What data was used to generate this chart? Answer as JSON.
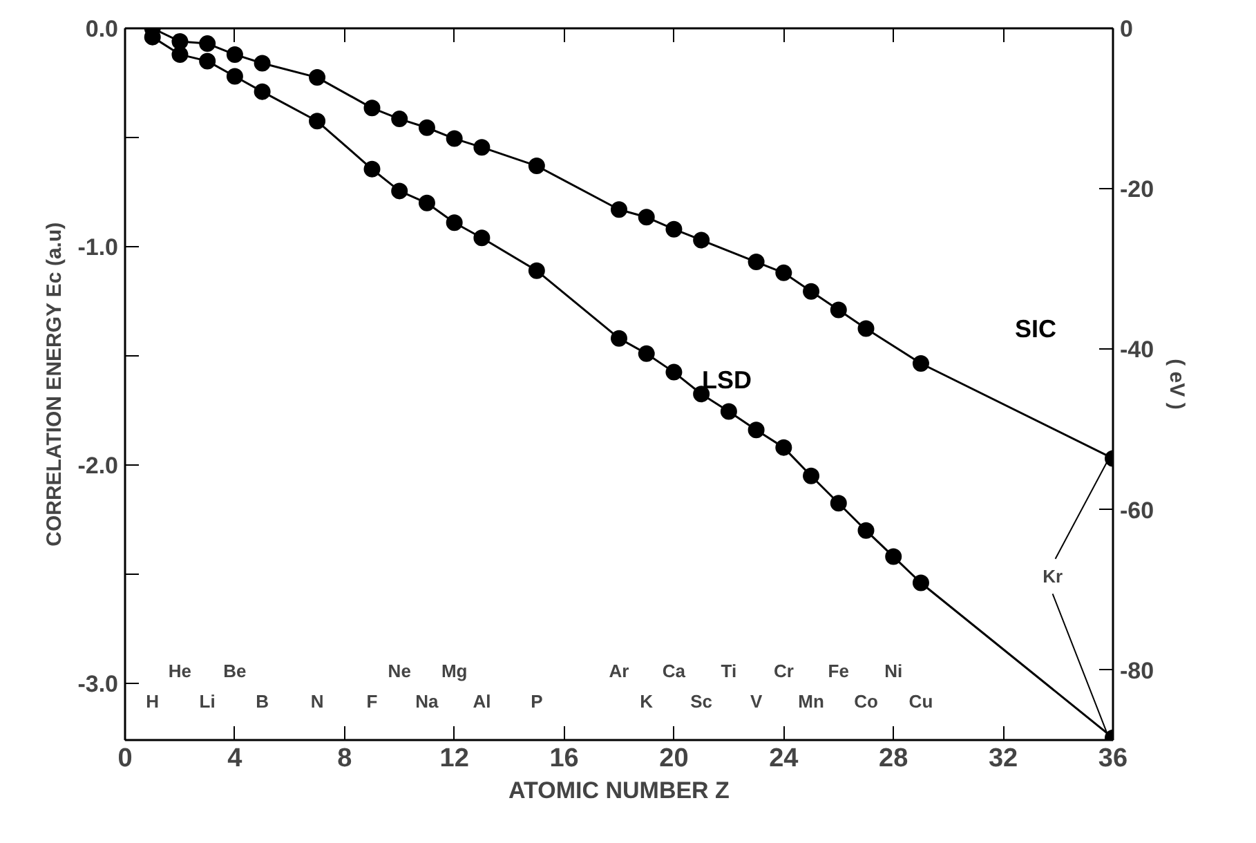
{
  "chart_data": {
    "type": "line",
    "xlabel": "ATOMIC NUMBER Z",
    "ylabel": "CORRELATION ENERGY Ec (a.u)",
    "y2label": "( eV )",
    "xlim": [
      0,
      36
    ],
    "xticks": [
      0,
      4,
      8,
      12,
      16,
      20,
      24,
      28,
      32,
      36
    ],
    "ylim": [
      -3.26,
      0
    ],
    "yticks": [
      {
        "value": 0,
        "label": "0.0"
      },
      {
        "value": -0.5,
        "label": null
      },
      {
        "value": -1,
        "label": "-1.0"
      },
      {
        "value": -1.5,
        "label": null
      },
      {
        "value": -2,
        "label": "-2.0"
      },
      {
        "value": -2.5,
        "label": null
      },
      {
        "value": -3,
        "label": "-3.0"
      }
    ],
    "y2lim": [
      -88.7,
      0
    ],
    "y2ticks": [
      0,
      -20,
      -40,
      -60,
      -80
    ],
    "grid": false,
    "marker": "circle",
    "line_style": "solid",
    "series": [
      {
        "name": "SIC",
        "color": "#000000",
        "x": [
          1,
          2,
          3,
          4,
          5,
          7,
          9,
          10,
          11,
          12,
          13,
          15,
          18,
          19,
          20,
          21,
          23,
          24,
          25,
          26,
          27,
          29,
          36
        ],
        "values": [
          0,
          -0.06,
          -0.07,
          -0.12,
          -0.16,
          -0.225,
          -0.365,
          -0.415,
          -0.455,
          -0.505,
          -0.545,
          -0.63,
          -0.83,
          -0.865,
          -0.92,
          -0.97,
          -1.07,
          -1.12,
          -1.205,
          -1.29,
          -1.375,
          -1.535,
          -1.97
        ]
      },
      {
        "name": "LSD",
        "color": "#000000",
        "x": [
          1,
          2,
          3,
          4,
          5,
          7,
          9,
          10,
          11,
          12,
          13,
          15,
          18,
          19,
          20,
          21,
          22,
          23,
          24,
          25,
          26,
          27,
          28,
          29,
          36
        ],
        "values": [
          -0.04,
          -0.12,
          -0.15,
          -0.22,
          -0.29,
          -0.425,
          -0.645,
          -0.745,
          -0.8,
          -0.89,
          -0.96,
          -1.11,
          -1.42,
          -1.49,
          -1.575,
          -1.675,
          -1.755,
          -1.84,
          -1.92,
          -2.05,
          -2.175,
          -2.3,
          -2.42,
          -2.54,
          -3.25
        ]
      }
    ],
    "annotations": [
      "H",
      "He",
      "Li",
      "Be",
      "B",
      "N",
      "F",
      "Ne",
      "Na",
      "Mg",
      "Al",
      "P",
      "Ar",
      "K",
      "Ca",
      "Sc",
      "Ti",
      "V",
      "Cr",
      "Mn",
      "Fe",
      "Co",
      "Ni",
      "Cu",
      {
        "text": "Kr",
        "x": 36,
        "y": -1.97
      }
    ]
  }
}
